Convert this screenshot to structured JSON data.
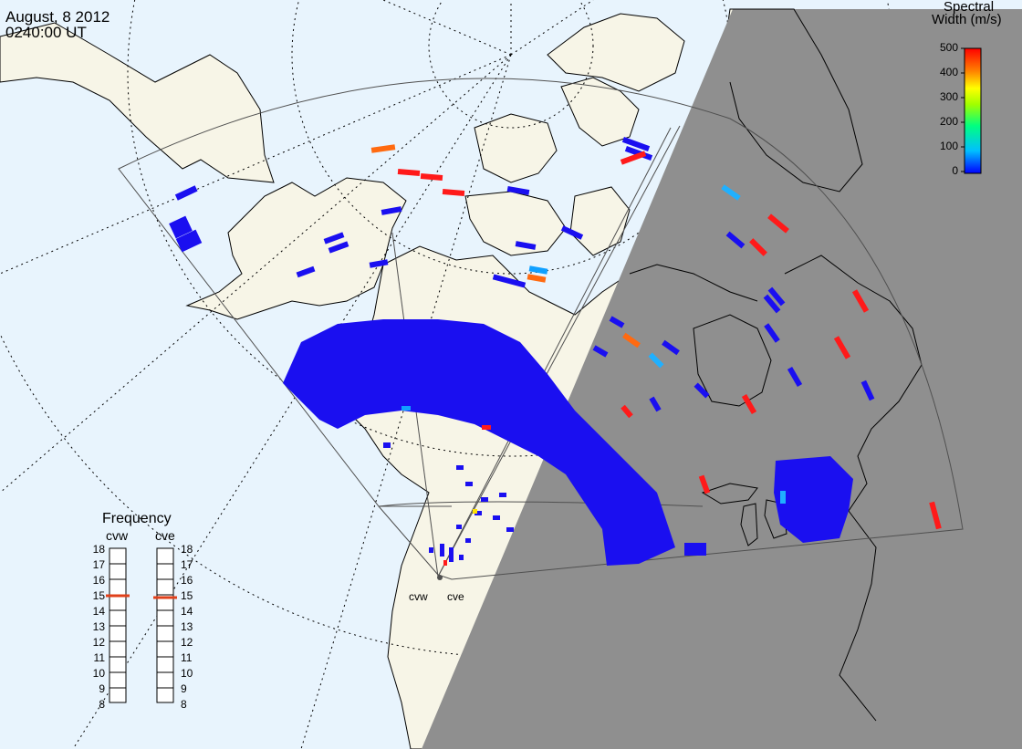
{
  "header": {
    "date": "August, 8 2012",
    "time": "0240:00 UT"
  },
  "colorbar": {
    "title_line1": "Spectral",
    "title_line2": "Width (m/s)",
    "ticks": [
      "500",
      "400",
      "300",
      "200",
      "100",
      "0"
    ],
    "min": 0,
    "max": 500,
    "colors": [
      "#0000ff",
      "#00bfff",
      "#00ff80",
      "#a0ff00",
      "#ffff00",
      "#ff8000",
      "#ff0000"
    ]
  },
  "frequency_panel": {
    "title": "Frequency",
    "radars": [
      {
        "name": "cvw",
        "value": 15
      },
      {
        "name": "cve",
        "value": 15
      }
    ],
    "ticks": [
      "18",
      "17",
      "16",
      "15",
      "14",
      "13",
      "12",
      "11",
      "10",
      "9",
      "8"
    ],
    "marker_color": "#e0401a"
  },
  "sites": {
    "west": "cvw",
    "east": "cve"
  },
  "map_colors": {
    "ocean": "#e8f4fd",
    "land": "#f7f5e7",
    "night": "#8f8f8f",
    "scatter": "#1a0ff0"
  }
}
